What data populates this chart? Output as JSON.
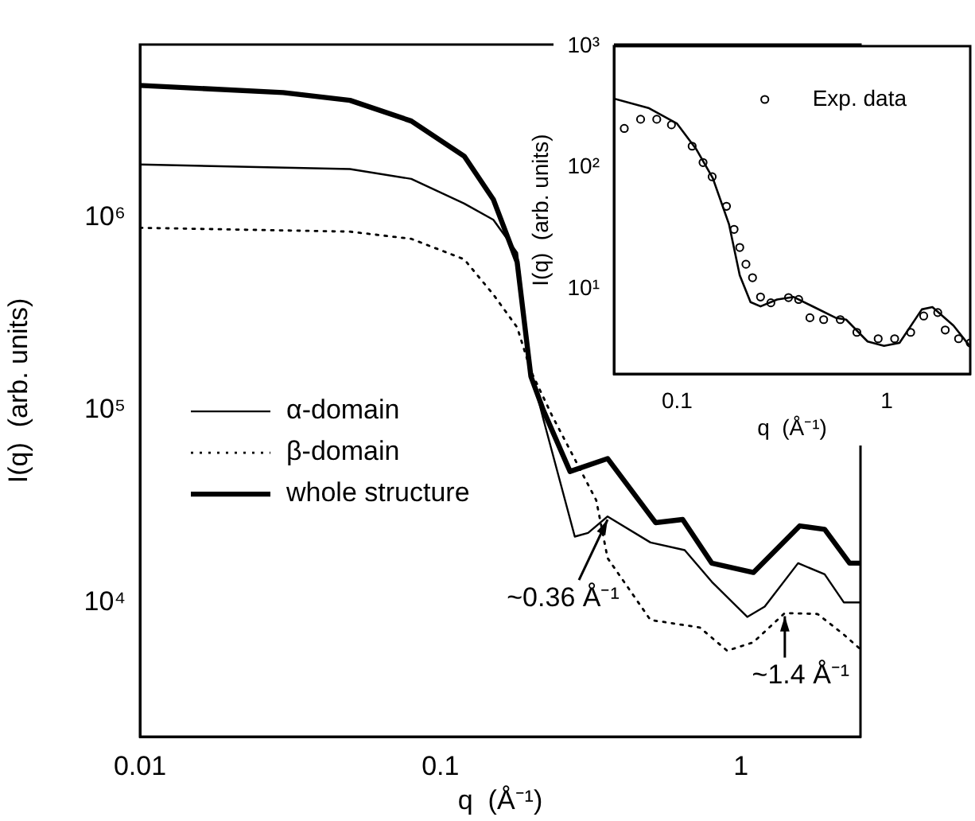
{
  "chart_data": [
    {
      "type": "line",
      "xlabel": "q  (Å⁻¹)",
      "ylabel": "I(q)  (arb. units)",
      "log": "xy",
      "xlim": [
        0.01,
        2.5
      ],
      "ylim": [
        2000,
        8000000
      ],
      "xticks": [
        0.01,
        0.1,
        1
      ],
      "yticks": [
        {
          "value": 10000,
          "label": "10⁴"
        },
        {
          "value": 100000,
          "label": "10⁵"
        },
        {
          "value": 1000000,
          "label": "10⁶"
        }
      ],
      "legend": "left",
      "series": [
        {
          "name": "α-domain",
          "color": "#000000",
          "line_style": "solid",
          "x": [
            0.01,
            0.05,
            0.08,
            0.12,
            0.15,
            0.18,
            0.2,
            0.22,
            0.28,
            0.31,
            0.36,
            0.5,
            0.65,
            0.8,
            1.05,
            1.2,
            1.55,
            1.9,
            2.2,
            2.5
          ],
          "values": [
            1900000,
            1800000,
            1600000,
            1190000,
            980000,
            660000,
            160000,
            90000,
            22000,
            23000,
            28000,
            20500,
            18700,
            12800,
            8400,
            9500,
            16000,
            14000,
            10000,
            10000
          ]
        },
        {
          "name": "β-domain",
          "color": "#000000",
          "line_style": "dotted",
          "x": [
            0.01,
            0.05,
            0.08,
            0.12,
            0.15,
            0.18,
            0.2,
            0.235,
            0.33,
            0.36,
            0.5,
            0.73,
            0.9,
            1.1,
            1.4,
            1.8,
            2.2,
            2.5
          ],
          "values": [
            890000,
            850000,
            780000,
            610000,
            400000,
            270000,
            160000,
            94000,
            34000,
            17000,
            8100,
            7400,
            5600,
            6200,
            8800,
            8700,
            6800,
            5700
          ]
        },
        {
          "name": "whole structure",
          "color": "#000000",
          "line_style": "solid",
          "x": [
            0.01,
            0.03,
            0.05,
            0.08,
            0.12,
            0.15,
            0.18,
            0.2,
            0.22,
            0.27,
            0.36,
            0.52,
            0.64,
            0.8,
            1.1,
            1.57,
            1.9,
            2.3,
            2.5
          ],
          "values": [
            4900000,
            4500000,
            4100000,
            3200000,
            2100000,
            1250000,
            590000,
            150000,
            100000,
            48000,
            56000,
            26000,
            27000,
            16000,
            14300,
            25000,
            24000,
            16000,
            16000
          ]
        }
      ],
      "annotations": [
        {
          "text": "~0.36 Å⁻¹",
          "x": 0.36,
          "y": 28000
        },
        {
          "text": "~1.4 Å⁻¹",
          "x": 1.4,
          "y": 8800
        }
      ]
    },
    {
      "type": "line",
      "xlabel": "q  (Å⁻¹)",
      "ylabel": "I(q)  (arb. units)",
      "log": "xy",
      "xlim": [
        0.05,
        2.5
      ],
      "ylim": [
        2,
        1000
      ],
      "xticks": [
        0.1,
        1
      ],
      "yticks": [
        {
          "value": 10,
          "label": "10¹"
        },
        {
          "value": 100,
          "label": "10²"
        },
        {
          "value": 1000,
          "label": "10³"
        }
      ],
      "legend": "top right",
      "series": [
        {
          "color": "#000000",
          "line_style": "solid",
          "marker": "none",
          "x": [
            0.05,
            0.073,
            0.1,
            0.124,
            0.148,
            0.177,
            0.199,
            0.224,
            0.25,
            0.3,
            0.36,
            0.45,
            0.57,
            0.64,
            0.81,
            0.97,
            1.15,
            1.47,
            1.65,
            2.08,
            2.45
          ],
          "values": [
            370,
            310,
            230,
            140,
            82,
            34,
            13,
            7.8,
            7.2,
            8.2,
            8.6,
            7.1,
            5.8,
            5.6,
            3.7,
            3.4,
            3.6,
            6.8,
            7.1,
            5.0,
            3.5
          ]
        },
        {
          "type": "scatter",
          "name": "Exp. data",
          "color": "#000000",
          "marker": "circle",
          "x": [
            0.056,
            0.067,
            0.08,
            0.094,
            0.118,
            0.133,
            0.147,
            0.172,
            0.187,
            0.199,
            0.213,
            0.229,
            0.25,
            0.28,
            0.34,
            0.38,
            0.43,
            0.5,
            0.6,
            0.72,
            0.91,
            1.09,
            1.3,
            1.5,
            1.75,
            1.9,
            2.2,
            2.5
          ],
          "values": [
            210,
            250,
            250,
            225,
            150,
            110,
            84,
            48,
            31,
            22,
            16,
            12.4,
            8.6,
            7.7,
            8.5,
            8.2,
            5.8,
            5.6,
            5.6,
            4.4,
            3.9,
            3.9,
            4.4,
            6.0,
            6.4,
            4.6,
            3.9,
            3.6
          ]
        }
      ]
    }
  ]
}
